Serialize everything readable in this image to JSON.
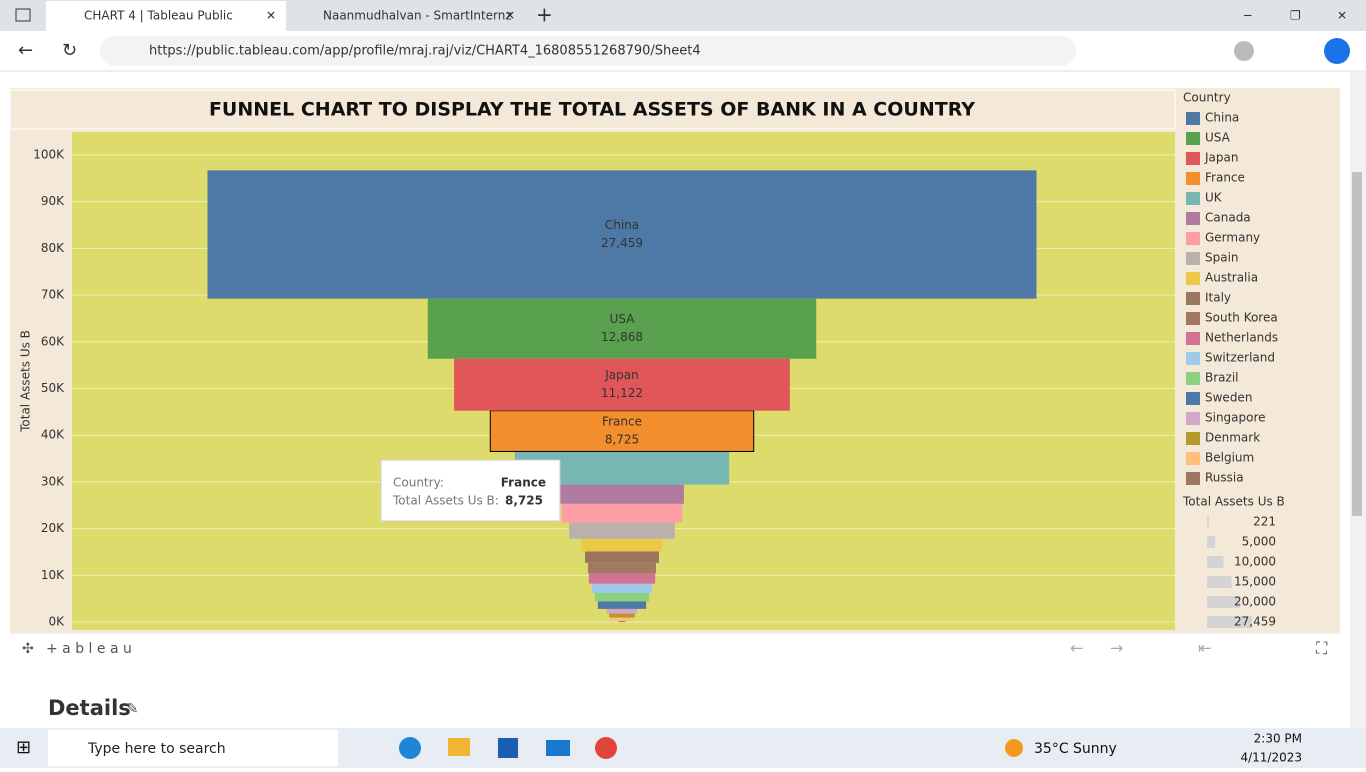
{
  "browser": {
    "tabs": [
      "CHART 4 | Tableau Public",
      "Naanmudhalvan - SmartInternz"
    ],
    "url": "https://public.tableau.com/app/profile/mraj.raj/viz/CHART4_16808551268790/Sheet4"
  },
  "chart_data": {
    "type": "funnel",
    "title": "FUNNEL CHART TO DISPLAY THE TOTAL ASSETS OF BANK IN A COUNTRY",
    "y_label": "Total Assets Us B",
    "categories": [
      "China",
      "USA",
      "Japan",
      "France",
      "UK",
      "Canada",
      "Germany",
      "Spain",
      "Australia",
      "Italy",
      "South Korea",
      "Netherlands",
      "Switzerland",
      "Brazil",
      "Sweden",
      "Singapore",
      "Denmark",
      "Belgium",
      "Russia"
    ],
    "values": [
      27459,
      12868,
      11122,
      8725,
      7100,
      4100,
      4000,
      3500,
      2700,
      2450,
      2250,
      2200,
      2000,
      1800,
      1600,
      1000,
      850,
      750,
      221
    ],
    "value_labels": [
      "27,459",
      "12,868",
      "11,122",
      "8,725",
      null,
      null,
      null,
      null,
      null,
      null,
      null,
      null,
      null,
      null,
      null,
      null,
      null,
      null,
      null
    ],
    "colors": [
      "#4e79a7",
      "#59a14f",
      "#e15759",
      "#f28e2b",
      "#76b7b2",
      "#b07aa1",
      "#ff9da7",
      "#bab0ac",
      "#edc948",
      "#9c755f",
      "#a07a60",
      "#d37295",
      "#a0cbe8",
      "#8cd17d",
      "#4e79a7",
      "#d4a6c8",
      "#b6992d",
      "#ffbe7d",
      "#9d7660"
    ],
    "ylim": [
      -1700,
      104900
    ],
    "yticks": [
      {
        "value": 0,
        "label": "0K"
      },
      {
        "value": 10000,
        "label": "10K"
      },
      {
        "value": 20000,
        "label": "20K"
      },
      {
        "value": 30000,
        "label": "30K"
      },
      {
        "value": 40000,
        "label": "40K"
      },
      {
        "value": 50000,
        "label": "50K"
      },
      {
        "value": 60000,
        "label": "60K"
      },
      {
        "value": 70000,
        "label": "70K"
      },
      {
        "value": 80000,
        "label": "80K"
      },
      {
        "value": 90000,
        "label": "90K"
      },
      {
        "value": 100000,
        "label": "100K"
      }
    ],
    "grid": true,
    "legend": {
      "title": "Country"
    },
    "size_legend": {
      "title": "Total Assets Us B",
      "ticks": [
        221,
        {
          "value": 5000,
          "label": "5,000"
        },
        {
          "value": 10000,
          "label": "10,000"
        },
        {
          "value": 15000,
          "label": "15,000"
        },
        {
          "value": 20000,
          "label": "20,000"
        },
        {
          "value": 27459,
          "label": "27,459"
        }
      ]
    }
  },
  "tooltip": {
    "country_label": "Country:",
    "country": "France",
    "value_label": "Total Assets Us B:",
    "value": "8,725"
  },
  "tableau_logo": "+ a b l e a u",
  "details": "Details",
  "taskbar": {
    "search": "Type here to search",
    "weather": "35°C  Sunny",
    "time": "2:30 PM",
    "date": "4/11/2023"
  }
}
